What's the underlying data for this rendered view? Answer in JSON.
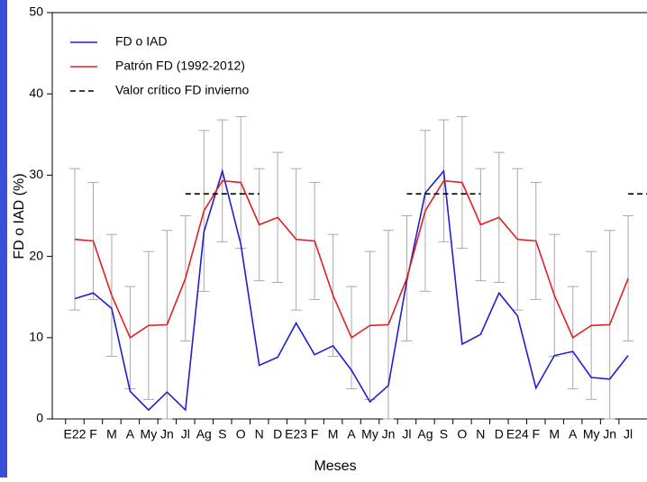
{
  "chart_data": {
    "type": "line",
    "x_label": "Meses",
    "y_label": "FD o IAD (%)",
    "categories": [
      "E22",
      "F",
      "M",
      "A",
      "My",
      "Jn",
      "Jl",
      "Ag",
      "S",
      "O",
      "N",
      "D",
      "E23",
      "F",
      "M",
      "A",
      "My",
      "Jn",
      "Jl",
      "Ag",
      "S",
      "O",
      "N",
      "D",
      "E24",
      "F",
      "M",
      "A",
      "My",
      "Jn",
      "Jl"
    ],
    "ylim": [
      0,
      50
    ],
    "yticks": [
      0,
      10,
      20,
      30,
      40,
      50
    ],
    "legend": "top-left",
    "error_color": "#a8a8a8",
    "series": [
      {
        "name": "FD o IAD",
        "color": "#1f1fcf",
        "style": "solid",
        "values": [
          14.8,
          15.5,
          13.6,
          3.4,
          1.1,
          3.3,
          1.1,
          23,
          30.5,
          21.5,
          6.6,
          7.6,
          11.8,
          7.9,
          9.0,
          6.0,
          2.1,
          4.1,
          17,
          27.8,
          30.5,
          9.2,
          10.4,
          15.5,
          12.7,
          3.8,
          7.8,
          8.3,
          5.1,
          4.9,
          7.8
        ]
      },
      {
        "name": "Patrón FD (1992-2012)",
        "color": "#e02020",
        "style": "solid",
        "values": [
          22.1,
          21.9,
          15.2,
          10.0,
          11.5,
          11.6,
          17.3,
          25.6,
          29.3,
          29.1,
          23.9,
          24.8,
          22.1,
          21.9,
          15.2,
          10.0,
          11.5,
          11.6,
          17.3,
          25.6,
          29.3,
          29.1,
          23.9,
          24.8,
          22.1,
          21.9,
          15.2,
          10.0,
          11.5,
          11.6,
          17.3
        ],
        "errors": [
          8.7,
          7.2,
          7.5,
          6.3,
          9.1,
          11.6,
          7.7,
          9.9,
          7.5,
          8.1,
          6.9,
          8.0,
          8.7,
          7.2,
          7.5,
          6.3,
          9.1,
          11.6,
          7.7,
          9.9,
          7.5,
          8.1,
          6.9,
          8.0,
          8.7,
          7.2,
          7.5,
          6.3,
          9.1,
          11.6,
          7.7
        ]
      },
      {
        "name": "Valor crítico FD invierno",
        "color": "#000000",
        "style": "dashed",
        "values": [
          null,
          null,
          null,
          null,
          null,
          null,
          27.7,
          27.7,
          27.7,
          27.7,
          27.7,
          null,
          null,
          null,
          null,
          null,
          null,
          null,
          27.7,
          27.7,
          27.7,
          27.7,
          27.7,
          null,
          null,
          null,
          null,
          null,
          null,
          null,
          27.7
        ]
      }
    ]
  }
}
